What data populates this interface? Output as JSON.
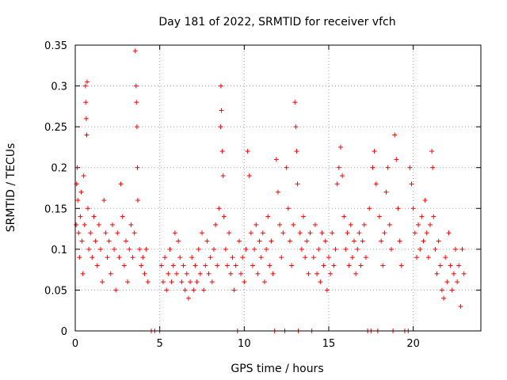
{
  "chart_data": {
    "type": "scatter",
    "title": "Day 181 of 2022, SRMTID for receiver vfch",
    "xlabel": "GPS time / hours",
    "ylabel": "SRMTID / TECUs",
    "xlim": [
      0,
      24
    ],
    "ylim": [
      0,
      0.35
    ],
    "x_ticks": [
      0,
      5,
      10,
      15,
      20
    ],
    "y_ticks": [
      0,
      0.05,
      0.1,
      0.15,
      0.2,
      0.25,
      0.3,
      0.35
    ],
    "x_tick_labels": [
      "0",
      "5",
      "10",
      "15",
      "20"
    ],
    "y_tick_labels": [
      "0",
      "0.05",
      "0.1",
      "0.15",
      "0.2",
      "0.25",
      "0.3",
      "0.35"
    ],
    "grid": true,
    "marker": "+",
    "color": "#ff0000",
    "series": [
      {
        "name": "SRMTID",
        "points": [
          [
            0.05,
            0.13
          ],
          [
            0.08,
            0.18
          ],
          [
            0.12,
            0.2
          ],
          [
            0.15,
            0.16
          ],
          [
            0.2,
            0.12
          ],
          [
            0.25,
            0.09
          ],
          [
            0.3,
            0.14
          ],
          [
            0.35,
            0.17
          ],
          [
            0.4,
            0.11
          ],
          [
            0.45,
            0.07
          ],
          [
            0.5,
            0.19
          ],
          [
            0.55,
            0.13
          ],
          [
            0.6,
            0.3
          ],
          [
            0.62,
            0.28
          ],
          [
            0.65,
            0.26
          ],
          [
            0.68,
            0.24
          ],
          [
            0.7,
            0.305
          ],
          [
            0.75,
            0.15
          ],
          [
            0.8,
            0.1
          ],
          [
            0.9,
            0.12
          ],
          [
            1.0,
            0.09
          ],
          [
            1.1,
            0.14
          ],
          [
            1.2,
            0.11
          ],
          [
            1.3,
            0.08
          ],
          [
            1.4,
            0.13
          ],
          [
            1.5,
            0.1
          ],
          [
            1.6,
            0.06
          ],
          [
            1.7,
            0.16
          ],
          [
            1.8,
            0.12
          ],
          [
            1.9,
            0.09
          ],
          [
            2.0,
            0.11
          ],
          [
            2.1,
            0.07
          ],
          [
            2.2,
            0.13
          ],
          [
            2.3,
            0.1
          ],
          [
            2.4,
            0.05
          ],
          [
            2.5,
            0.12
          ],
          [
            2.6,
            0.09
          ],
          [
            2.7,
            0.18
          ],
          [
            2.8,
            0.14
          ],
          [
            2.9,
            0.08
          ],
          [
            3.0,
            0.11
          ],
          [
            3.1,
            0.06
          ],
          [
            3.2,
            0.1
          ],
          [
            3.3,
            0.13
          ],
          [
            3.4,
            0.09
          ],
          [
            3.5,
            0.12
          ],
          [
            3.55,
            0.343
          ],
          [
            3.6,
            0.3
          ],
          [
            3.62,
            0.28
          ],
          [
            3.65,
            0.25
          ],
          [
            3.68,
            0.2
          ],
          [
            3.7,
            0.16
          ],
          [
            3.8,
            0.1
          ],
          [
            3.9,
            0.08
          ],
          [
            4.0,
            0.09
          ],
          [
            4.1,
            0.07
          ],
          [
            4.2,
            0.1
          ],
          [
            4.3,
            0.06
          ],
          [
            4.5,
            0.0
          ],
          [
            4.7,
            0.0
          ],
          [
            5.0,
            0.0
          ],
          [
            5.1,
            0.08
          ],
          [
            5.2,
            0.06
          ],
          [
            5.3,
            0.09
          ],
          [
            5.4,
            0.05
          ],
          [
            5.5,
            0.07
          ],
          [
            5.6,
            0.1
          ],
          [
            5.7,
            0.06
          ],
          [
            5.8,
            0.08
          ],
          [
            5.9,
            0.12
          ],
          [
            6.0,
            0.07
          ],
          [
            6.1,
            0.11
          ],
          [
            6.2,
            0.09
          ],
          [
            6.3,
            0.06
          ],
          [
            6.4,
            0.08
          ],
          [
            6.5,
            0.05
          ],
          [
            6.6,
            0.07
          ],
          [
            6.7,
            0.04
          ],
          [
            6.8,
            0.06
          ],
          [
            6.9,
            0.09
          ],
          [
            7.0,
            0.05
          ],
          [
            7.1,
            0.08
          ],
          [
            7.2,
            0.06
          ],
          [
            7.3,
            0.1
          ],
          [
            7.4,
            0.07
          ],
          [
            7.5,
            0.12
          ],
          [
            7.6,
            0.05
          ],
          [
            7.7,
            0.08
          ],
          [
            7.8,
            0.11
          ],
          [
            7.9,
            0.07
          ],
          [
            8.0,
            0.09
          ],
          [
            8.1,
            0.06
          ],
          [
            8.2,
            0.1
          ],
          [
            8.3,
            0.13
          ],
          [
            8.4,
            0.08
          ],
          [
            8.5,
            0.15
          ],
          [
            8.6,
            0.25
          ],
          [
            8.62,
            0.3
          ],
          [
            8.65,
            0.27
          ],
          [
            8.7,
            0.22
          ],
          [
            8.75,
            0.19
          ],
          [
            8.8,
            0.14
          ],
          [
            8.9,
            0.1
          ],
          [
            9.0,
            0.08
          ],
          [
            9.1,
            0.12
          ],
          [
            9.2,
            0.07
          ],
          [
            9.3,
            0.09
          ],
          [
            9.4,
            0.05
          ],
          [
            9.5,
            0.08
          ],
          [
            9.6,
            0.0
          ],
          [
            9.7,
            0.11
          ],
          [
            9.8,
            0.07
          ],
          [
            9.9,
            0.09
          ],
          [
            10.0,
            0.06
          ],
          [
            10.1,
            0.1
          ],
          [
            10.2,
            0.22
          ],
          [
            10.3,
            0.19
          ],
          [
            10.4,
            0.12
          ],
          [
            10.5,
            0.08
          ],
          [
            10.6,
            0.1
          ],
          [
            10.7,
            0.13
          ],
          [
            10.8,
            0.07
          ],
          [
            10.9,
            0.11
          ],
          [
            11.0,
            0.09
          ],
          [
            11.1,
            0.12
          ],
          [
            11.2,
            0.06
          ],
          [
            11.3,
            0.1
          ],
          [
            11.4,
            0.14
          ],
          [
            11.5,
            0.08
          ],
          [
            11.6,
            0.11
          ],
          [
            11.7,
            0.07
          ],
          [
            11.8,
            0.0
          ],
          [
            11.9,
            0.21
          ],
          [
            12.0,
            0.17
          ],
          [
            12.1,
            0.13
          ],
          [
            12.2,
            0.09
          ],
          [
            12.3,
            0.12
          ],
          [
            12.4,
            0.0
          ],
          [
            12.5,
            0.2
          ],
          [
            12.6,
            0.15
          ],
          [
            12.7,
            0.11
          ],
          [
            12.8,
            0.08
          ],
          [
            12.9,
            0.13
          ],
          [
            13.0,
            0.28
          ],
          [
            13.05,
            0.25
          ],
          [
            13.1,
            0.22
          ],
          [
            13.15,
            0.18
          ],
          [
            13.2,
            0.0
          ],
          [
            13.3,
            0.12
          ],
          [
            13.4,
            0.1
          ],
          [
            13.5,
            0.14
          ],
          [
            13.6,
            0.09
          ],
          [
            13.7,
            0.11
          ],
          [
            13.8,
            0.07
          ],
          [
            13.9,
            0.12
          ],
          [
            14.0,
            0.0
          ],
          [
            14.1,
            0.09
          ],
          [
            14.2,
            0.13
          ],
          [
            14.3,
            0.07
          ],
          [
            14.4,
            0.1
          ],
          [
            14.5,
            0.06
          ],
          [
            14.6,
            0.12
          ],
          [
            14.7,
            0.08
          ],
          [
            14.8,
            0.11
          ],
          [
            14.9,
            0.05
          ],
          [
            15.0,
            0.09
          ],
          [
            15.1,
            0.07
          ],
          [
            15.2,
            0.12
          ],
          [
            15.3,
            0.08
          ],
          [
            15.4,
            0.1
          ],
          [
            15.5,
            0.18
          ],
          [
            15.6,
            0.2
          ],
          [
            15.7,
            0.225
          ],
          [
            15.8,
            0.19
          ],
          [
            15.9,
            0.14
          ],
          [
            16.0,
            0.1
          ],
          [
            16.1,
            0.12
          ],
          [
            16.2,
            0.08
          ],
          [
            16.3,
            0.13
          ],
          [
            16.4,
            0.09
          ],
          [
            16.5,
            0.11
          ],
          [
            16.6,
            0.07
          ],
          [
            16.7,
            0.1
          ],
          [
            16.8,
            0.12
          ],
          [
            16.9,
            0.08
          ],
          [
            17.0,
            0.11
          ],
          [
            17.1,
            0.13
          ],
          [
            17.2,
            0.09
          ],
          [
            17.3,
            0.0
          ],
          [
            17.4,
            0.15
          ],
          [
            17.5,
            0.0
          ],
          [
            17.6,
            0.2
          ],
          [
            17.7,
            0.22
          ],
          [
            17.8,
            0.18
          ],
          [
            17.9,
            0.0
          ],
          [
            18.0,
            0.14
          ],
          [
            18.1,
            0.11
          ],
          [
            18.2,
            0.08
          ],
          [
            18.3,
            0.12
          ],
          [
            18.4,
            0.17
          ],
          [
            18.5,
            0.2
          ],
          [
            18.6,
            0.13
          ],
          [
            18.7,
            0.1
          ],
          [
            18.8,
            0.0
          ],
          [
            18.9,
            0.24
          ],
          [
            19.0,
            0.21
          ],
          [
            19.1,
            0.15
          ],
          [
            19.2,
            0.11
          ],
          [
            19.3,
            0.08
          ],
          [
            19.5,
            0.0
          ],
          [
            19.7,
            0.0
          ],
          [
            19.8,
            0.2
          ],
          [
            19.9,
            0.18
          ],
          [
            20.0,
            0.15
          ],
          [
            20.1,
            0.12
          ],
          [
            20.2,
            0.09
          ],
          [
            20.3,
            0.13
          ],
          [
            20.4,
            0.1
          ],
          [
            20.5,
            0.14
          ],
          [
            20.6,
            0.11
          ],
          [
            20.7,
            0.16
          ],
          [
            20.8,
            0.12
          ],
          [
            20.9,
            0.09
          ],
          [
            21.0,
            0.13
          ],
          [
            21.1,
            0.22
          ],
          [
            21.15,
            0.2
          ],
          [
            21.2,
            0.14
          ],
          [
            21.3,
            0.1
          ],
          [
            21.4,
            0.07
          ],
          [
            21.5,
            0.11
          ],
          [
            21.6,
            0.08
          ],
          [
            21.7,
            0.05
          ],
          [
            21.8,
            0.04
          ],
          [
            21.9,
            0.09
          ],
          [
            22.0,
            0.06
          ],
          [
            22.1,
            0.12
          ],
          [
            22.2,
            0.08
          ],
          [
            22.3,
            0.05
          ],
          [
            22.4,
            0.07
          ],
          [
            22.5,
            0.1
          ],
          [
            22.6,
            0.06
          ],
          [
            22.7,
            0.08
          ],
          [
            22.8,
            0.03
          ],
          [
            22.9,
            0.1
          ],
          [
            23.0,
            0.07
          ]
        ]
      }
    ]
  }
}
